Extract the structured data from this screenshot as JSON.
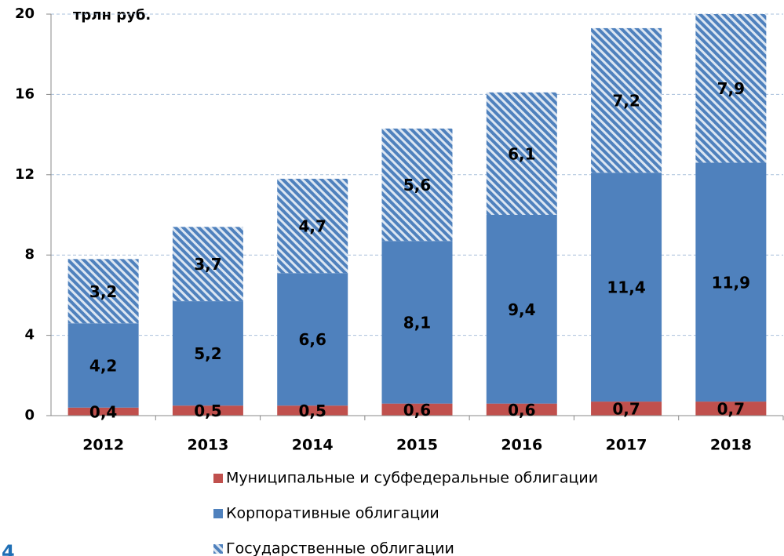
{
  "chart_data": {
    "type": "stacked_bar",
    "y_label": "трлн руб.",
    "categories": [
      "2012",
      "2013",
      "2014",
      "2015",
      "2016",
      "2017",
      "2018"
    ],
    "series": [
      {
        "name": "Муниципальные и субфедеральные облигации",
        "color": "#c0504d",
        "values": [
          0.4,
          0.5,
          0.5,
          0.6,
          0.6,
          0.7,
          0.7
        ],
        "value_labels": [
          "0,4",
          "0,5",
          "0,5",
          "0,6",
          "0,6",
          "0,7",
          "0,7"
        ]
      },
      {
        "name": "Корпоративные облигации",
        "color": "#4f81bd",
        "values": [
          4.2,
          5.2,
          6.6,
          8.1,
          9.4,
          11.4,
          11.9
        ],
        "value_labels": [
          "4,2",
          "5,2",
          "6,6",
          "8,1",
          "9,4",
          "11,4",
          "11,9"
        ]
      },
      {
        "name": "Государственные облигации",
        "color": "#4f81bd",
        "pattern": "hatch",
        "values": [
          3.2,
          3.7,
          4.7,
          5.6,
          6.1,
          7.2,
          7.9
        ],
        "value_labels": [
          "3,2",
          "3,7",
          "4,7",
          "5,6",
          "6,1",
          "7,2",
          "7,9"
        ]
      }
    ],
    "ylim": [
      0,
      20
    ],
    "yticks": [
      0,
      4,
      8,
      12,
      16,
      20
    ],
    "grid": true
  },
  "page_number": "4"
}
